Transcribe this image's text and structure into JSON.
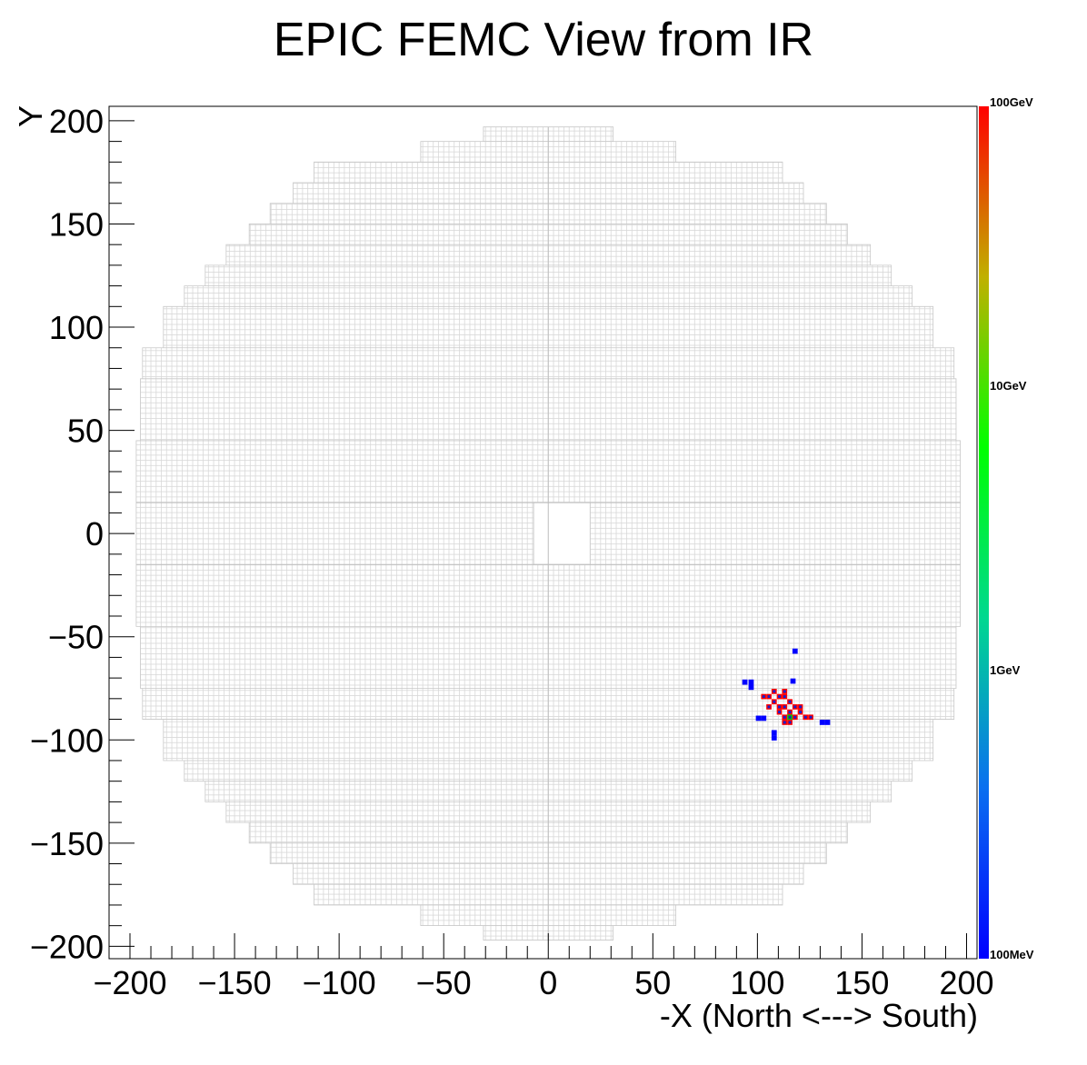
{
  "chart_data": {
    "type": "heatmap",
    "title": "EPIC FEMC View from IR",
    "xlabel": "-X (North <---> South)",
    "ylabel": "Y",
    "xlim": [
      -210,
      205
    ],
    "ylim": [
      -206,
      207
    ],
    "x_ticks": [
      -200,
      -150,
      -100,
      -50,
      0,
      50,
      100,
      150,
      200
    ],
    "x_tick_labels": [
      "−200",
      "−150",
      "−100",
      "−50",
      "0",
      "50",
      "100",
      "150",
      "200"
    ],
    "y_ticks": [
      -200,
      -150,
      -100,
      -50,
      0,
      50,
      100,
      150,
      200
    ],
    "y_tick_labels": [
      "−200",
      "−150",
      "−100",
      "−50",
      "0",
      "50",
      "100",
      "150",
      "200"
    ],
    "detector_outline": {
      "rows": [
        {
          "y": [
            -197,
            -190
          ],
          "x": [
            -31,
            31
          ]
        },
        {
          "y": [
            -190,
            -180
          ],
          "x": [
            -61,
            61
          ]
        },
        {
          "y": [
            -180,
            -170
          ],
          "x": [
            -112,
            112
          ]
        },
        {
          "y": [
            -170,
            -160
          ],
          "x": [
            -122,
            122
          ]
        },
        {
          "y": [
            -160,
            -150
          ],
          "x": [
            -133,
            133
          ]
        },
        {
          "y": [
            -150,
            -140
          ],
          "x": [
            -143,
            143
          ]
        },
        {
          "y": [
            -140,
            -130
          ],
          "x": [
            -154,
            154
          ]
        },
        {
          "y": [
            -130,
            -120
          ],
          "x": [
            -164,
            164
          ]
        },
        {
          "y": [
            -120,
            -110
          ],
          "x": [
            -174,
            174
          ]
        },
        {
          "y": [
            -110,
            -90
          ],
          "x": [
            -184,
            184
          ]
        },
        {
          "y": [
            -90,
            -75
          ],
          "x": [
            -194,
            194
          ]
        },
        {
          "y": [
            -75,
            -45
          ],
          "x": [
            -195,
            195
          ]
        },
        {
          "y": [
            -45,
            45
          ],
          "x": [
            -197,
            197
          ]
        },
        {
          "y": [
            45,
            75
          ],
          "x": [
            -195,
            195
          ]
        },
        {
          "y": [
            75,
            90
          ],
          "x": [
            -194,
            194
          ]
        },
        {
          "y": [
            90,
            110
          ],
          "x": [
            -184,
            184
          ]
        },
        {
          "y": [
            110,
            120
          ],
          "x": [
            -174,
            174
          ]
        },
        {
          "y": [
            120,
            130
          ],
          "x": [
            -164,
            164
          ]
        },
        {
          "y": [
            130,
            140
          ],
          "x": [
            -154,
            154
          ]
        },
        {
          "y": [
            140,
            150
          ],
          "x": [
            -143,
            143
          ]
        },
        {
          "y": [
            150,
            160
          ],
          "x": [
            -133,
            133
          ]
        },
        {
          "y": [
            160,
            170
          ],
          "x": [
            -122,
            122
          ]
        },
        {
          "y": [
            170,
            180
          ],
          "x": [
            -112,
            112
          ]
        },
        {
          "y": [
            180,
            190
          ],
          "x": [
            -61,
            61
          ]
        },
        {
          "y": [
            190,
            197
          ],
          "x": [
            -31,
            31
          ]
        }
      ],
      "beam_hole": {
        "x": [
          -7,
          20
        ],
        "y": [
          -15,
          15
        ]
      },
      "cell_size": 2.5,
      "grid_color": "#d8d8d8"
    },
    "hits": [
      {
        "x": 118,
        "y": -57,
        "level": "low"
      },
      {
        "x": 94,
        "y": -72,
        "level": "low"
      },
      {
        "x": 97,
        "y": -72,
        "level": "low"
      },
      {
        "x": 97,
        "y": -74.5,
        "level": "low"
      },
      {
        "x": 117,
        "y": -71.5,
        "level": "low"
      },
      {
        "x": 103,
        "y": -79,
        "level": "high"
      },
      {
        "x": 105.5,
        "y": -79,
        "level": "high"
      },
      {
        "x": 108,
        "y": -76.5,
        "level": "high"
      },
      {
        "x": 110.5,
        "y": -79,
        "level": "high"
      },
      {
        "x": 113,
        "y": -76.5,
        "level": "high"
      },
      {
        "x": 108,
        "y": -81.5,
        "level": "high"
      },
      {
        "x": 113,
        "y": -79,
        "level": "high"
      },
      {
        "x": 115.5,
        "y": -81.5,
        "level": "high"
      },
      {
        "x": 105.5,
        "y": -84,
        "level": "high"
      },
      {
        "x": 110.5,
        "y": -84,
        "level": "high"
      },
      {
        "x": 113,
        "y": -84,
        "level": "high"
      },
      {
        "x": 118,
        "y": -84,
        "level": "high"
      },
      {
        "x": 120.5,
        "y": -84,
        "level": "high"
      },
      {
        "x": 110.5,
        "y": -86.5,
        "level": "high"
      },
      {
        "x": 115.5,
        "y": -86.5,
        "level": "high"
      },
      {
        "x": 120.5,
        "y": -86.5,
        "level": "high"
      },
      {
        "x": 113,
        "y": -89,
        "level": "high"
      },
      {
        "x": 118,
        "y": -89,
        "level": "high"
      },
      {
        "x": 123,
        "y": -89,
        "level": "high"
      },
      {
        "x": 125.5,
        "y": -89,
        "level": "high"
      },
      {
        "x": 113,
        "y": -91.5,
        "level": "high"
      },
      {
        "x": 115.5,
        "y": -91.5,
        "level": "high"
      },
      {
        "x": 115.5,
        "y": -89,
        "level": "mid"
      },
      {
        "x": 100.5,
        "y": -89.5,
        "level": "low"
      },
      {
        "x": 103,
        "y": -89.5,
        "level": "low"
      },
      {
        "x": 131,
        "y": -91.5,
        "level": "low"
      },
      {
        "x": 133.5,
        "y": -91.5,
        "level": "low"
      },
      {
        "x": 108,
        "y": -96.5,
        "level": "low"
      },
      {
        "x": 108,
        "y": -99,
        "level": "low"
      }
    ],
    "colorbar": {
      "scale": "log",
      "labels": [
        "100GeV",
        "10GeV",
        "1GeV",
        "100MeV"
      ],
      "stops": [
        "#0000ff",
        "#0a6ff0",
        "#00d890",
        "#00ff00",
        "#c0b000",
        "#ff0000"
      ]
    },
    "hit_colors": {
      "high": "#ff0000",
      "mid": "#00c000",
      "low": "#0000ff",
      "marker": "#1020d0"
    }
  }
}
